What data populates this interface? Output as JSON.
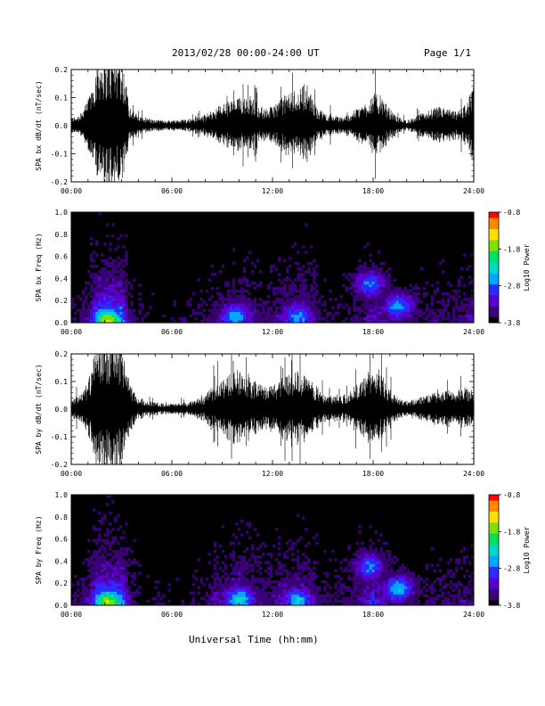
{
  "header": {
    "title": "2013/02/28  00:00-24:00 UT",
    "page": "Page 1/1"
  },
  "colors": {
    "background": "#ffffff",
    "axis": "#000000",
    "trace": "#000000",
    "colormap": [
      "#000000",
      "#3a0078",
      "#5a00d0",
      "#2b2cff",
      "#00a8ff",
      "#00d8c8",
      "#00e060",
      "#7fe000",
      "#ffe000",
      "#ff8800",
      "#ff0000"
    ]
  },
  "chart_data": [
    {
      "type": "line",
      "ylabel": "SPA bx dB/dt (nT/sec)",
      "xlim": [
        0,
        24
      ],
      "ylim": [
        -0.2,
        0.2
      ],
      "xticks": [
        "00:00",
        "06:00",
        "12:00",
        "18:00",
        "24:00"
      ],
      "yticks": [
        "-0.2",
        "-0.1",
        "0.0",
        "0.1",
        "0.2"
      ],
      "envelope": {
        "hours": [
          0,
          0.5,
          1.0,
          1.6,
          2.0,
          2.5,
          3.0,
          3.5,
          4.0,
          5.0,
          6.0,
          7.0,
          8.0,
          8.5,
          9.0,
          9.5,
          10.0,
          10.5,
          11.0,
          11.5,
          12.0,
          12.5,
          13.0,
          13.5,
          14.0,
          14.5,
          15.0,
          15.5,
          16.0,
          16.5,
          17.0,
          17.5,
          18.0,
          18.5,
          19.0,
          19.5,
          20.0,
          20.5,
          21.0,
          21.5,
          22.0,
          22.5,
          23.0,
          23.5,
          24.0
        ],
        "amplitude": [
          0.03,
          0.04,
          0.09,
          0.25,
          0.25,
          0.25,
          0.25,
          0.07,
          0.035,
          0.02,
          0.02,
          0.025,
          0.04,
          0.06,
          0.08,
          0.09,
          0.1,
          0.12,
          0.09,
          0.06,
          0.07,
          0.1,
          0.12,
          0.13,
          0.16,
          0.08,
          0.05,
          0.04,
          0.03,
          0.04,
          0.06,
          0.08,
          0.12,
          0.1,
          0.06,
          0.03,
          0.02,
          0.03,
          0.05,
          0.06,
          0.07,
          0.06,
          0.05,
          0.08,
          0.14
        ]
      }
    },
    {
      "type": "heatmap",
      "ylabel": "SPA bx Freq (Hz)",
      "colorbar_label": "Log10 Power",
      "colorbar_ticks": [
        "-0.8",
        "-1.8",
        "-2.8",
        "-3.8"
      ],
      "colorbar_range": [
        -3.8,
        -0.8
      ],
      "xlim": [
        0,
        24
      ],
      "ylim": [
        0,
        1.0
      ],
      "xticks": [
        "00:00",
        "06:00",
        "12:00",
        "18:00",
        "24:00"
      ],
      "yticks": [
        "0.0",
        "0.2",
        "0.4",
        "0.6",
        "0.8",
        "1.0"
      ],
      "hotspots": [
        {
          "hour": 2.2,
          "freq": 0.02,
          "level": -1.5
        },
        {
          "hour": 9.8,
          "freq": 0.05,
          "level": -2.5
        },
        {
          "hour": 13.5,
          "freq": 0.05,
          "level": -2.6
        },
        {
          "hour": 17.8,
          "freq": 0.35,
          "level": -2.7
        },
        {
          "hour": 19.5,
          "freq": 0.15,
          "level": -2.6
        }
      ]
    },
    {
      "type": "line",
      "ylabel": "SPA by dB/dt (nT/sec)",
      "xlim": [
        0,
        24
      ],
      "ylim": [
        -0.2,
        0.2
      ],
      "xticks": [
        "00:00",
        "06:00",
        "12:00",
        "18:00",
        "24:00"
      ],
      "yticks": [
        "-0.2",
        "-0.1",
        "0.0",
        "0.1",
        "0.2"
      ],
      "envelope": {
        "hours": [
          0,
          0.5,
          1.0,
          1.6,
          2.0,
          2.5,
          3.0,
          3.5,
          4.0,
          5.0,
          6.0,
          7.0,
          8.0,
          8.5,
          9.0,
          9.5,
          10.0,
          10.5,
          11.0,
          11.5,
          12.0,
          12.5,
          13.0,
          13.5,
          14.0,
          14.5,
          15.0,
          15.5,
          16.0,
          16.5,
          17.0,
          17.5,
          18.0,
          18.5,
          19.0,
          19.5,
          20.0,
          20.5,
          21.0,
          21.5,
          22.0,
          22.5,
          23.0,
          23.5,
          24.0
        ],
        "amplitude": [
          0.04,
          0.05,
          0.1,
          0.25,
          0.25,
          0.25,
          0.25,
          0.09,
          0.04,
          0.025,
          0.02,
          0.025,
          0.05,
          0.09,
          0.11,
          0.13,
          0.15,
          0.12,
          0.1,
          0.08,
          0.09,
          0.12,
          0.13,
          0.14,
          0.12,
          0.09,
          0.06,
          0.05,
          0.05,
          0.06,
          0.09,
          0.12,
          0.16,
          0.12,
          0.07,
          0.04,
          0.03,
          0.04,
          0.05,
          0.06,
          0.06,
          0.07,
          0.07,
          0.08,
          0.08
        ]
      }
    },
    {
      "type": "heatmap",
      "ylabel": "SPA by Freq (Hz)",
      "colorbar_label": "Log10 Power",
      "colorbar_ticks": [
        "-0.8",
        "-1.8",
        "-2.8",
        "-3.8"
      ],
      "colorbar_range": [
        -3.8,
        -0.8
      ],
      "xlim": [
        0,
        24
      ],
      "ylim": [
        0,
        1.0
      ],
      "xticks": [
        "00:00",
        "06:00",
        "12:00",
        "18:00",
        "24:00"
      ],
      "yticks": [
        "0.0",
        "0.2",
        "0.4",
        "0.6",
        "0.8",
        "1.0"
      ],
      "hotspots": [
        {
          "hour": 2.2,
          "freq": 0.03,
          "level": -1.6
        },
        {
          "hour": 10.0,
          "freq": 0.05,
          "level": -2.3
        },
        {
          "hour": 13.5,
          "freq": 0.04,
          "level": -2.4
        },
        {
          "hour": 17.8,
          "freq": 0.35,
          "level": -2.7
        },
        {
          "hour": 19.5,
          "freq": 0.15,
          "level": -2.5
        }
      ]
    }
  ],
  "xlabel": "Universal Time (hh:mm)"
}
